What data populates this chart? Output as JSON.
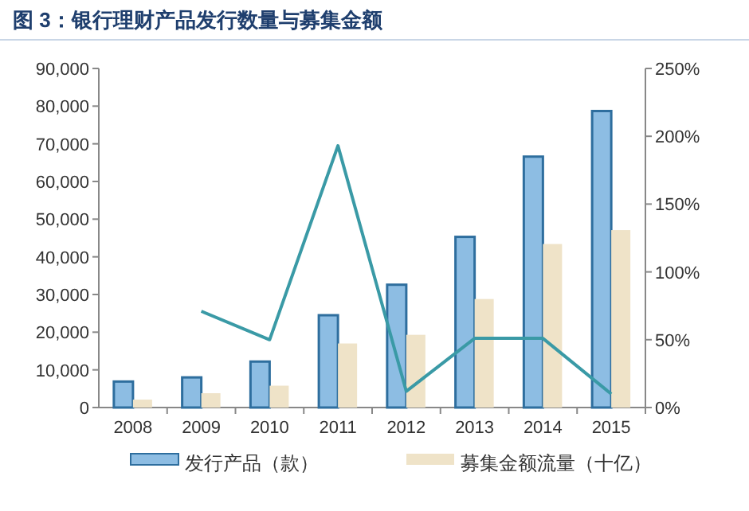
{
  "chart_data": {
    "type": "bar",
    "title": "图 3：银行理财产品发行数量与募集金额",
    "categories": [
      "2008",
      "2009",
      "2010",
      "2011",
      "2012",
      "2013",
      "2014",
      "2015"
    ],
    "series": [
      {
        "name": "发行产品（款）",
        "color": "#8dbde3",
        "values": [
          6900,
          8000,
          12200,
          24500,
          32600,
          45300,
          66600,
          78700
        ]
      },
      {
        "name": "募集金额流量（十亿）",
        "color": "#efe3c8",
        "values": [
          2100,
          3800,
          5800,
          17000,
          19300,
          28800,
          43400,
          47100
        ]
      },
      {
        "type": "line",
        "axis": "y2",
        "color": "#3a9aa6",
        "values": [
          null,
          71,
          50,
          193,
          12,
          51,
          51,
          10
        ]
      }
    ],
    "ylim": [
      0,
      90000
    ],
    "yticks": [
      0,
      {
        "value": 10000,
        "label": "10,000"
      },
      {
        "value": 20000,
        "label": "20,000"
      },
      {
        "value": 30000,
        "label": "30,000"
      },
      {
        "value": 40000,
        "label": "40,000"
      },
      {
        "value": 50000,
        "label": "50,000"
      },
      {
        "value": 60000,
        "label": "60,000"
      },
      {
        "value": 70000,
        "label": "70,000"
      },
      {
        "value": 80000,
        "label": "80,000"
      },
      {
        "value": 90000,
        "label": "90,000"
      }
    ],
    "y2lim": [
      0,
      250
    ],
    "y2ticks": [
      {
        "value": 0,
        "label": "0%"
      },
      {
        "value": 50,
        "label": "50%"
      },
      {
        "value": 100,
        "label": "100%"
      },
      {
        "value": 150,
        "label": "150%"
      },
      {
        "value": 200,
        "label": "200%"
      },
      {
        "value": 250,
        "label": "250%"
      }
    ],
    "legend": "bottom",
    "grid": false
  }
}
